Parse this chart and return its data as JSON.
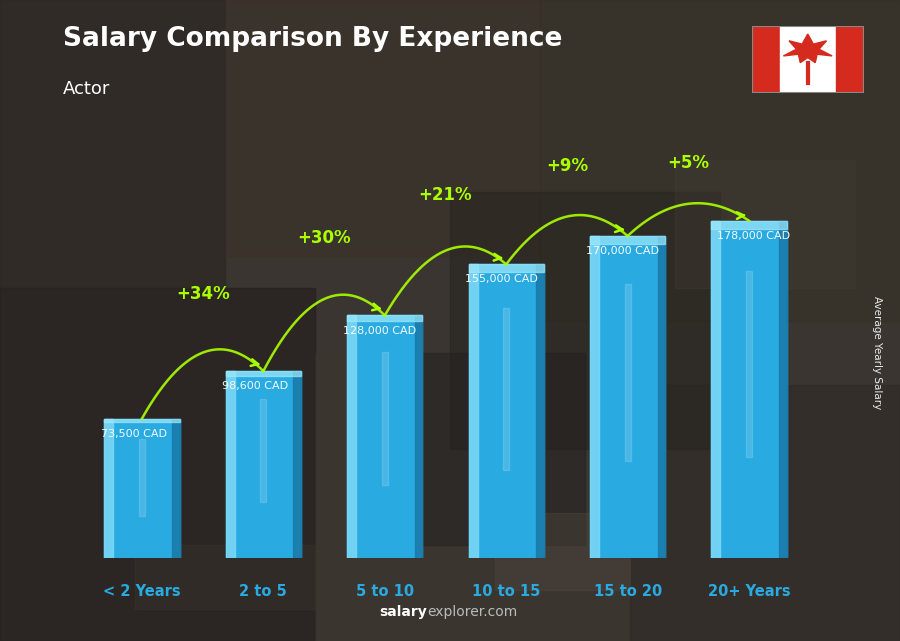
{
  "title": "Salary Comparison By Experience",
  "subtitle": "Actor",
  "categories": [
    "< 2 Years",
    "2 to 5",
    "5 to 10",
    "10 to 15",
    "15 to 20",
    "20+ Years"
  ],
  "values": [
    73500,
    98600,
    128000,
    155000,
    170000,
    178000
  ],
  "salary_labels": [
    "73,500 CAD",
    "98,600 CAD",
    "128,000 CAD",
    "155,000 CAD",
    "170,000 CAD",
    "178,000 CAD"
  ],
  "pct_changes": [
    "+34%",
    "+30%",
    "+21%",
    "+9%",
    "+5%"
  ],
  "bar_color": "#29ABE2",
  "bar_left_highlight": "#7DD8F5",
  "bar_right_shadow": "#1A7BAB",
  "bar_top_color": "#5BC8E8",
  "background_color": "#4a4a4a",
  "title_color": "#ffffff",
  "subtitle_color": "#ffffff",
  "salary_label_color": "#ffffff",
  "pct_color": "#aaff00",
  "xlabel_color": "#29ABE2",
  "watermark_salary_color": "#ffffff",
  "watermark_explorer_color": "#aaaaaa",
  "right_label": "Average Yearly Salary",
  "right_label_color": "#ffffff",
  "ylim_max": 210000,
  "bar_width": 0.62
}
